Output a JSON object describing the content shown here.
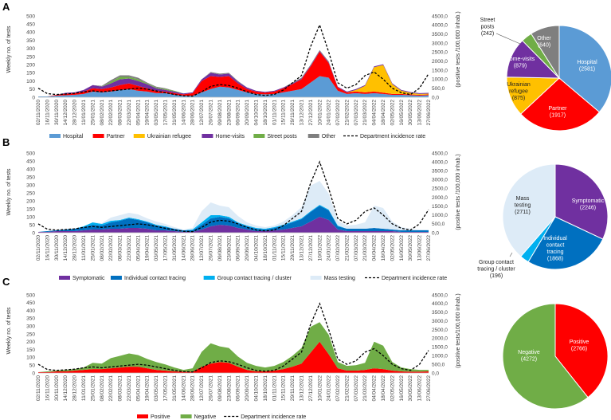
{
  "colors": {
    "hospital": "#5B9BD5",
    "partner": "#FF0000",
    "ukrainian": "#FFC000",
    "home_visits": "#7030A0",
    "street_posts": "#70AD47",
    "other": "#7F7F7F",
    "symptomatic": "#7030A0",
    "individual": "#0070C0",
    "group": "#00B0F0",
    "mass": "#DDEBF7",
    "positive": "#FF0000",
    "negative": "#70AD47",
    "incidence": "#000000"
  },
  "chart_data": [
    {
      "panel": "A",
      "type": "area",
      "stacked": true,
      "ylabel": "Weekly no. of tests",
      "y2label": "(positive tests /100,000 inhab.)",
      "ylim": [
        0,
        500
      ],
      "y2lim": [
        0,
        4500
      ],
      "yticks": [
        "0",
        "50",
        "100",
        "150",
        "200",
        "250",
        "300",
        "350",
        "400",
        "450",
        "500"
      ],
      "y2ticks": [
        "0,0",
        "500,0",
        "1000,0",
        "1500,0",
        "2000,0",
        "2500,0",
        "3000,0",
        "3500,0",
        "4000,0",
        "4500,0"
      ],
      "x_labels": [
        "02/11/2020",
        "16/11/2020",
        "30/11/2020",
        "14/12/2020",
        "28/12/2020",
        "11/01/2021",
        "25/01/2021",
        "08/02/2021",
        "22/02/2021",
        "08/03/2021",
        "22/03/2021",
        "05/04/2021",
        "19/04/2021",
        "03/05/2021",
        "17/05/2021",
        "31/05/2021",
        "14/06/2021",
        "28/06/2021",
        "12/07/2021",
        "26/07/2021",
        "09/08/2021",
        "23/08/2021",
        "06/09/2021",
        "20/09/2021",
        "04/10/2021",
        "18/10/2021",
        "01/11/2021",
        "15/11/2021",
        "29/11/2021",
        "13/12/2021",
        "27/12/2021",
        "10/01/2022",
        "24/01/2022",
        "07/02/2022",
        "21/02/2022",
        "07/03/2022",
        "21/03/2022",
        "04/04/2022",
        "18/04/2022",
        "02/05/2022",
        "16/05/2022",
        "30/05/2022",
        "13/06/2022",
        "27/06/2022"
      ],
      "series": [
        {
          "name": "Hospital",
          "color_key": "hospital",
          "values": [
            5,
            5,
            10,
            12,
            15,
            20,
            35,
            30,
            35,
            45,
            50,
            40,
            35,
            25,
            25,
            15,
            10,
            10,
            30,
            50,
            65,
            60,
            45,
            30,
            20,
            18,
            20,
            30,
            40,
            50,
            90,
            130,
            120,
            40,
            20,
            25,
            20,
            25,
            20,
            15,
            15,
            12,
            10,
            12
          ]
        },
        {
          "name": "Partner",
          "color_key": "partner",
          "values": [
            0,
            0,
            5,
            10,
            10,
            15,
            20,
            20,
            25,
            30,
            35,
            30,
            20,
            15,
            10,
            10,
            8,
            15,
            70,
            80,
            60,
            70,
            40,
            20,
            15,
            10,
            15,
            25,
            40,
            60,
            100,
            150,
            90,
            20,
            10,
            10,
            10,
            10,
            8,
            5,
            5,
            5,
            5,
            5
          ]
        },
        {
          "name": "Ukrainian refugee",
          "color_key": "ukrainian",
          "values": [
            0,
            0,
            0,
            0,
            0,
            0,
            0,
            0,
            0,
            0,
            0,
            0,
            0,
            0,
            0,
            0,
            0,
            0,
            0,
            0,
            0,
            0,
            0,
            0,
            0,
            0,
            0,
            0,
            0,
            0,
            0,
            0,
            0,
            0,
            0,
            10,
            40,
            150,
            170,
            60,
            20,
            10,
            5,
            5
          ]
        },
        {
          "name": "Home-visits",
          "color_key": "home_visits",
          "values": [
            0,
            0,
            0,
            5,
            5,
            10,
            20,
            15,
            25,
            35,
            30,
            30,
            25,
            15,
            10,
            10,
            5,
            5,
            10,
            20,
            15,
            15,
            10,
            10,
            5,
            5,
            5,
            5,
            5,
            5,
            5,
            5,
            5,
            5,
            5,
            5,
            5,
            5,
            5,
            5,
            5,
            5,
            5,
            5
          ]
        },
        {
          "name": "Street posts",
          "color_key": "street_posts",
          "values": [
            0,
            0,
            0,
            0,
            0,
            0,
            0,
            0,
            10,
            15,
            10,
            10,
            5,
            5,
            5,
            5,
            0,
            0,
            0,
            0,
            0,
            0,
            0,
            0,
            0,
            0,
            0,
            0,
            0,
            0,
            0,
            0,
            0,
            0,
            0,
            0,
            0,
            0,
            0,
            0,
            0,
            0,
            0,
            0
          ]
        },
        {
          "name": "Other",
          "color_key": "other",
          "values": [
            0,
            0,
            0,
            0,
            0,
            0,
            0,
            5,
            10,
            10,
            10,
            10,
            5,
            5,
            5,
            0,
            0,
            0,
            0,
            5,
            5,
            5,
            5,
            0,
            0,
            0,
            0,
            0,
            5,
            5,
            5,
            5,
            5,
            0,
            0,
            0,
            0,
            0,
            0,
            0,
            0,
            0,
            0,
            0
          ]
        }
      ],
      "incidence_rate": [
        500,
        200,
        150,
        180,
        220,
        300,
        350,
        300,
        350,
        400,
        450,
        500,
        450,
        350,
        250,
        150,
        80,
        60,
        300,
        600,
        700,
        650,
        500,
        300,
        150,
        100,
        150,
        400,
        800,
        1200,
        2800,
        4000,
        2500,
        800,
        500,
        700,
        1200,
        1400,
        1000,
        500,
        250,
        150,
        500,
        1300
      ],
      "legend": [
        "Hospital",
        "Partner",
        "Ukrainian refugee",
        "Home-visits",
        "Street posts",
        "Other",
        "Department incidence rate"
      ]
    },
    {
      "panel": "B",
      "type": "area",
      "stacked": true,
      "ylabel": "Weekly no. of tests",
      "y2label": "(positive tests /100,000 inhab.)",
      "ylim": [
        0,
        500
      ],
      "y2lim": [
        0,
        4500
      ],
      "yticks": [
        "0",
        "50",
        "100",
        "150",
        "200",
        "250",
        "300",
        "350",
        "400",
        "450",
        "500"
      ],
      "y2ticks": [
        "0,0",
        "500,0",
        "1000,0",
        "1500,0",
        "2000,0",
        "2500,0",
        "3000,0",
        "3500,0",
        "4000,0",
        "4500,0"
      ],
      "series": [
        {
          "name": "Symptomatic",
          "color_key": "symptomatic",
          "values": [
            5,
            5,
            10,
            10,
            10,
            15,
            20,
            20,
            25,
            25,
            30,
            30,
            25,
            15,
            15,
            10,
            5,
            5,
            20,
            40,
            50,
            45,
            30,
            20,
            10,
            10,
            15,
            20,
            30,
            40,
            70,
            100,
            80,
            20,
            10,
            10,
            10,
            10,
            10,
            10,
            5,
            5,
            5,
            5
          ]
        },
        {
          "name": "Individual contact tracing",
          "color_key": "individual",
          "values": [
            0,
            5,
            5,
            10,
            15,
            20,
            30,
            25,
            40,
            50,
            60,
            50,
            40,
            30,
            20,
            15,
            10,
            10,
            30,
            50,
            50,
            45,
            30,
            20,
            15,
            10,
            15,
            25,
            35,
            45,
            60,
            70,
            60,
            20,
            15,
            15,
            15,
            20,
            15,
            10,
            10,
            10,
            10,
            10
          ]
        },
        {
          "name": "Group contact tracing / cluster",
          "color_key": "group",
          "values": [
            0,
            0,
            0,
            0,
            0,
            5,
            15,
            10,
            10,
            5,
            5,
            5,
            5,
            5,
            5,
            0,
            0,
            5,
            15,
            20,
            10,
            10,
            5,
            5,
            5,
            5,
            5,
            5,
            5,
            5,
            5,
            5,
            5,
            5,
            0,
            0,
            0,
            0,
            0,
            0,
            0,
            0,
            0,
            0
          ]
        },
        {
          "name": "Mass testing",
          "color_key": "mass",
          "values": [
            0,
            0,
            0,
            0,
            0,
            0,
            0,
            5,
            20,
            30,
            30,
            30,
            20,
            20,
            15,
            10,
            5,
            10,
            70,
            80,
            60,
            60,
            40,
            20,
            15,
            10,
            10,
            20,
            40,
            70,
            160,
            150,
            100,
            30,
            20,
            25,
            40,
            140,
            130,
            50,
            20,
            10,
            5,
            5
          ]
        }
      ],
      "incidence_rate": [
        500,
        200,
        150,
        180,
        220,
        300,
        350,
        300,
        350,
        400,
        450,
        500,
        450,
        350,
        250,
        150,
        80,
        60,
        300,
        600,
        700,
        650,
        500,
        300,
        150,
        100,
        150,
        400,
        800,
        1200,
        2800,
        4000,
        2500,
        800,
        500,
        700,
        1200,
        1400,
        1000,
        500,
        250,
        150,
        500,
        1300
      ],
      "legend": [
        "Symptomatic",
        "Individual contact tracing",
        "Group contact tracing / cluster",
        "Mass testing",
        "Department incidence rate"
      ]
    },
    {
      "panel": "C",
      "type": "area",
      "stacked": true,
      "ylabel": "Weekly no. of tests",
      "y2label": "(positive tests/100,000 inhab.)",
      "ylim": [
        0,
        500
      ],
      "y2lim": [
        0,
        4500
      ],
      "yticks": [
        "0",
        "50",
        "100",
        "150",
        "200",
        "250",
        "300",
        "350",
        "400",
        "450",
        "500"
      ],
      "y2ticks": [
        "0,0",
        "500,0",
        "1000,0",
        "1500,0",
        "2000,0",
        "2500,0",
        "3000,0",
        "3500,0",
        "4000,0",
        "4500,0"
      ],
      "series": [
        {
          "name": "Positive",
          "color_key": "positive",
          "values": [
            5,
            5,
            10,
            10,
            15,
            20,
            25,
            25,
            30,
            35,
            40,
            40,
            30,
            20,
            15,
            10,
            8,
            8,
            40,
            60,
            70,
            65,
            40,
            20,
            10,
            10,
            15,
            25,
            40,
            60,
            130,
            200,
            120,
            30,
            15,
            15,
            20,
            30,
            25,
            15,
            10,
            8,
            8,
            10
          ]
        },
        {
          "name": "Negative",
          "color_key": "negative",
          "values": [
            0,
            5,
            5,
            10,
            10,
            15,
            40,
            35,
            65,
            75,
            85,
            75,
            60,
            50,
            40,
            25,
            12,
            22,
            95,
            130,
            100,
            95,
            65,
            45,
            35,
            25,
            30,
            45,
            70,
            100,
            165,
            125,
            125,
            40,
            30,
            35,
            45,
            170,
            150,
            55,
            25,
            17,
            12,
            10
          ]
        }
      ],
      "incidence_rate": [
        500,
        200,
        150,
        180,
        220,
        300,
        350,
        300,
        350,
        400,
        450,
        500,
        450,
        350,
        250,
        150,
        80,
        60,
        300,
        600,
        700,
        650,
        500,
        300,
        150,
        100,
        150,
        400,
        800,
        1200,
        2800,
        4000,
        2500,
        800,
        500,
        700,
        1200,
        1400,
        1000,
        500,
        250,
        150,
        500,
        1300
      ],
      "legend": [
        "Positive",
        "Negative",
        "Department incidence rate"
      ]
    },
    {
      "panel": "A-pie",
      "type": "pie",
      "slices": [
        {
          "label": "Hospital",
          "value": 2581,
          "display": "(2581)",
          "color_key": "hospital"
        },
        {
          "label": "Partner",
          "value": 1917,
          "display": "(1917)",
          "color_key": "partner"
        },
        {
          "label": "Ukrainian refugee",
          "value": 875,
          "display": "(875)",
          "color_key": "ukrainian"
        },
        {
          "label": "Home-visits",
          "value": 879,
          "display": "(879)",
          "color_key": "home_visits"
        },
        {
          "label": "Street posts",
          "value": 242,
          "display": "(242)",
          "color_key": "street_posts"
        },
        {
          "label": "Other",
          "value": 640,
          "display": "(640)",
          "color_key": "other"
        }
      ]
    },
    {
      "panel": "B-pie",
      "type": "pie",
      "slices": [
        {
          "label": "Symptomatic",
          "value": 2246,
          "display": "(2246)",
          "color_key": "symptomatic"
        },
        {
          "label": "Individual contact tracing",
          "value": 1868,
          "display": "(1868)",
          "color_key": "individual"
        },
        {
          "label": "Group contact tracing / cluster",
          "value": 196,
          "display": "(196)",
          "color_key": "group"
        },
        {
          "label": "Mass testing",
          "value": 2711,
          "display": "(2711)",
          "color_key": "mass"
        }
      ]
    },
    {
      "panel": "C-pie",
      "type": "pie",
      "slices": [
        {
          "label": "Positive",
          "value": 2766,
          "display": "(2766)",
          "color_key": "positive"
        },
        {
          "label": "Negative",
          "value": 4272,
          "display": "(4272)",
          "color_key": "negative"
        }
      ]
    }
  ]
}
